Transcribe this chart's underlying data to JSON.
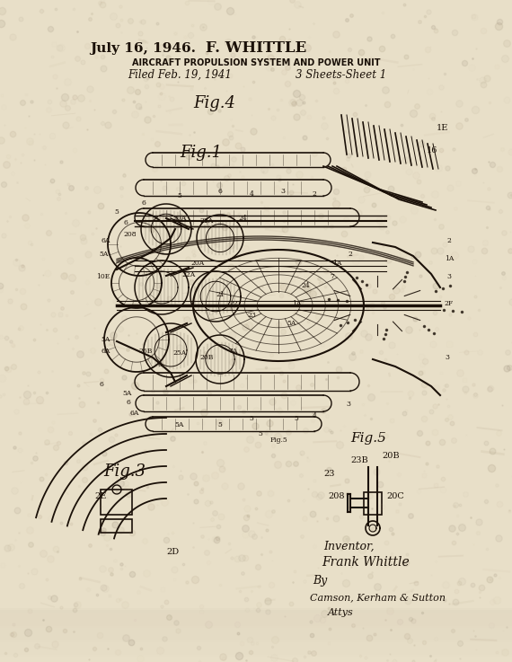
{
  "bg_color": "#e8dfc8",
  "paper_texture": true,
  "title_date": "July 16, 1946.",
  "title_inventor": "F. WHITTLE",
  "title_patent": "AIRCRAFT PROPULSION SYSTEM AND POWER UNIT",
  "title_filed": "Filed Feb. 19, 1941",
  "title_sheets": "3 Sheets-Sheet 1",
  "inventor_text": "Inventor,\nFrank Whittle\n  By\n  Camson, Kerham & Sutton\n    Attys",
  "fig_labels": [
    "Fig.4",
    "Fig.1",
    "Fig.3",
    "Fig.5"
  ],
  "text_color": "#1a1008",
  "line_color": "#1a1008",
  "figsize": [
    5.7,
    7.37
  ],
  "dpi": 100
}
